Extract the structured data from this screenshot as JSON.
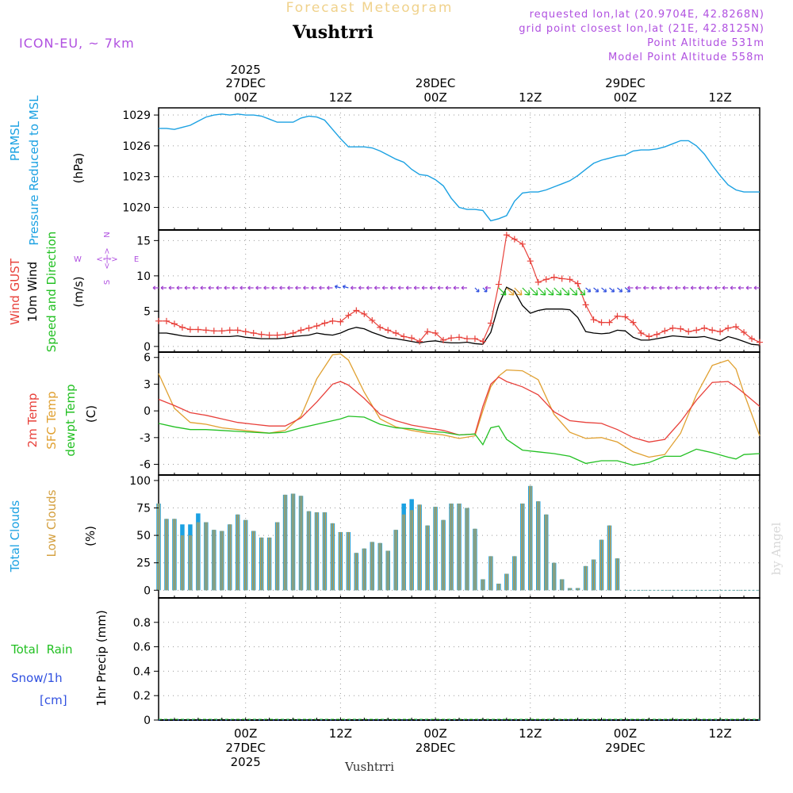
{
  "header": {
    "forecast_label": "Forecast Meteogram",
    "title": "Vushtrri",
    "model": "ICON-EU, ~ 7km",
    "requested": "requested lon,lat (20.9704E, 42.8268N)",
    "grid_point": "grid point closest lon,lat (21E, 42.8125N)",
    "point_altitude": "Point Altitude 531m",
    "model_altitude": "Model Point Altitude 558m",
    "footer_name": "Vushtrri",
    "watermark": "by Angel",
    "compass_n": "N",
    "compass_s": "S",
    "compass_w": "W",
    "compass_e": "E",
    "compass_arrows": "<-|->",
    "compass_vert": "<-|->"
  },
  "time_axis": {
    "year": "2025",
    "top_labels": [
      {
        "hour": 24,
        "time": "00Z",
        "date": "27DEC",
        "year": "2025"
      },
      {
        "hour": 36,
        "time": "12Z",
        "date": "",
        "year": ""
      },
      {
        "hour": 48,
        "time": "00Z",
        "date": "28DEC",
        "year": ""
      },
      {
        "hour": 60,
        "time": "12Z",
        "date": "",
        "year": ""
      },
      {
        "hour": 72,
        "time": "00Z",
        "date": "29DEC",
        "year": ""
      },
      {
        "hour": 84,
        "time": "12Z",
        "date": "",
        "year": ""
      }
    ],
    "bottom_labels": [
      {
        "hour": 24,
        "time": "00Z",
        "date": "27DEC",
        "year": "2025"
      },
      {
        "hour": 36,
        "time": "12Z",
        "date": "",
        "year": ""
      },
      {
        "hour": 48,
        "time": "00Z",
        "date": "28DEC",
        "year": ""
      },
      {
        "hour": 60,
        "time": "12Z",
        "date": "",
        "year": ""
      },
      {
        "hour": 72,
        "time": "00Z",
        "date": "29DEC",
        "year": ""
      },
      {
        "hour": 84,
        "time": "12Z",
        "date": "",
        "year": ""
      }
    ],
    "hour_start": 13,
    "hour_end": 89
  },
  "panel_labels": {
    "pressure": {
      "name1": "PRMSL",
      "name2": "Pressure Reduced to MSL",
      "unit": "(hPa)"
    },
    "wind": {
      "gust": "Wind GUST",
      "wind10": "10m Wind",
      "dir": "Speed and Direction",
      "unit": "(m/s)"
    },
    "temp": {
      "t2m": "2m Temp",
      "sfc": "SFC Temp",
      "dewpt": "dewpt Temp",
      "unit": "(C)"
    },
    "clouds": {
      "total": "Total Clouds",
      "low": "Low Clouds",
      "unit": "(%)"
    },
    "precip": {
      "rain": "Total  Rain",
      "snow": "Snow/1h",
      "snow_unit": "[cm]",
      "ylabel": "1hr Precip (mm)"
    }
  },
  "colors": {
    "pressure": "#1ba1e2",
    "gust": "#e8403a",
    "wind": "#000000",
    "t2m": "#e8403a",
    "sfc": "#e0a030",
    "dewpt": "#22c022",
    "total_cloud": "#1ba1e2",
    "low_cloud": "#d4a040",
    "purple": "#a040d0",
    "rain": "#22c022",
    "snow": "#3050e0"
  },
  "chart_data": [
    {
      "type": "line",
      "title": "PRMSL Pressure Reduced to MSL",
      "ylabel": "(hPa)",
      "ylim": [
        1017.8,
        1029.7
      ],
      "yticks": [
        1020,
        1023,
        1026,
        1029
      ],
      "x": [
        13,
        14,
        15,
        16,
        17,
        18,
        19,
        20,
        21,
        22,
        23,
        24,
        25,
        26,
        27,
        28,
        29,
        30,
        31,
        32,
        33,
        34,
        35,
        36,
        37,
        38,
        39,
        40,
        41,
        42,
        43,
        44,
        45,
        46,
        47,
        48,
        49,
        50,
        51,
        52,
        53,
        54,
        55,
        56,
        57,
        58,
        59,
        60,
        61,
        62,
        63,
        64,
        65,
        66,
        67,
        68,
        69,
        70,
        71,
        72,
        73,
        74,
        75,
        76,
        77,
        78,
        79,
        80,
        81,
        82,
        83,
        84,
        85,
        86,
        87,
        88,
        89
      ],
      "series": [
        {
          "name": "PRMSL",
          "values": [
            1027.7,
            1027.7,
            1027.6,
            1027.8,
            1028.0,
            1028.4,
            1028.8,
            1029.0,
            1029.1,
            1029.0,
            1029.1,
            1029.0,
            1029.0,
            1028.9,
            1028.6,
            1028.3,
            1028.3,
            1028.3,
            1028.7,
            1028.9,
            1028.8,
            1028.5,
            1027.6,
            1026.7,
            1025.9,
            1025.9,
            1025.9,
            1025.8,
            1025.5,
            1025.1,
            1024.7,
            1024.4,
            1023.7,
            1023.2,
            1023.1,
            1022.7,
            1022.1,
            1020.9,
            1020.0,
            1019.8,
            1019.8,
            1019.7,
            1018.7,
            1018.9,
            1019.2,
            1020.6,
            1021.4,
            1021.5,
            1021.5,
            1021.7,
            1022.0,
            1022.3,
            1022.6,
            1023.1,
            1023.7,
            1024.3,
            1024.6,
            1024.8,
            1025.0,
            1025.1,
            1025.5,
            1025.6,
            1025.6,
            1025.7,
            1025.9,
            1026.2,
            1026.5,
            1026.5,
            1026.0,
            1025.2,
            1024.1,
            1023.1,
            1022.2,
            1021.7,
            1021.5,
            1021.5,
            1021.5
          ]
        }
      ]
    },
    {
      "type": "line",
      "title": "Wind GUST / 10m Wind",
      "ylabel": "(m/s)",
      "ylim": [
        -0.8,
        16.5
      ],
      "yticks": [
        0,
        5,
        10,
        15
      ],
      "x": [
        13,
        14,
        15,
        16,
        17,
        18,
        19,
        20,
        21,
        22,
        23,
        24,
        25,
        26,
        27,
        28,
        29,
        30,
        31,
        32,
        33,
        34,
        35,
        36,
        37,
        38,
        39,
        40,
        41,
        42,
        43,
        44,
        45,
        46,
        47,
        48,
        49,
        50,
        51,
        52,
        53,
        54,
        55,
        56,
        57,
        58,
        59,
        60,
        61,
        62,
        63,
        64,
        65,
        66,
        67,
        68,
        69,
        70,
        71,
        72,
        73,
        74,
        75,
        76,
        77,
        78,
        79,
        80,
        81,
        82,
        83,
        84,
        85,
        86,
        87,
        88,
        89
      ],
      "series": [
        {
          "name": "Wind GUST",
          "values": [
            3.6,
            3.6,
            3.2,
            2.7,
            2.4,
            2.4,
            2.3,
            2.2,
            2.2,
            2.3,
            2.3,
            2.1,
            1.9,
            1.7,
            1.6,
            1.6,
            1.7,
            1.9,
            2.3,
            2.6,
            2.9,
            3.3,
            3.6,
            3.5,
            4.4,
            5.1,
            4.6,
            3.7,
            2.7,
            2.3,
            1.9,
            1.4,
            1.2,
            0.7,
            2.1,
            1.9,
            0.9,
            1.2,
            1.3,
            1.1,
            1.1,
            0.7,
            3.3,
            8.8,
            15.8,
            15.2,
            14.5,
            12.1,
            9.1,
            9.5,
            9.8,
            9.6,
            9.5,
            8.9,
            5.9,
            3.8,
            3.4,
            3.4,
            4.3,
            4.2,
            3.4,
            1.9,
            1.4,
            1.7,
            2.2,
            2.6,
            2.5,
            2.1,
            2.3,
            2.6,
            2.3,
            2.1,
            2.6,
            2.8,
            2.0,
            1.1,
            0.6
          ]
        },
        {
          "name": "10m Wind",
          "values": [
            1.9,
            1.9,
            1.7,
            1.5,
            1.4,
            1.4,
            1.4,
            1.4,
            1.4,
            1.4,
            1.5,
            1.3,
            1.2,
            1.1,
            1.1,
            1.1,
            1.2,
            1.4,
            1.5,
            1.6,
            1.9,
            1.7,
            1.6,
            1.9,
            2.4,
            2.7,
            2.5,
            2.0,
            1.6,
            1.2,
            1.1,
            0.9,
            0.7,
            0.5,
            0.7,
            0.8,
            0.6,
            0.5,
            0.5,
            0.6,
            0.4,
            0.3,
            2.0,
            5.9,
            8.4,
            7.8,
            5.8,
            4.7,
            5.1,
            5.3,
            5.3,
            5.3,
            5.2,
            4.1,
            2.1,
            1.9,
            1.8,
            1.9,
            2.3,
            2.2,
            1.3,
            0.9,
            0.9,
            1.1,
            1.3,
            1.5,
            1.4,
            1.3,
            1.3,
            1.4,
            1.1,
            0.8,
            1.4,
            1.1,
            0.7,
            0.3,
            0.2
          ]
        }
      ]
    },
    {
      "type": "line",
      "title": "2m Temp / SFC Temp / dewpt Temp",
      "ylabel": "(C)",
      "ylim": [
        -7.2,
        6.6
      ],
      "yticks": [
        -6,
        -3,
        0,
        3,
        6
      ],
      "x": [
        13,
        15,
        17,
        19,
        21,
        23,
        25,
        27,
        29,
        31,
        33,
        35,
        36,
        37,
        39,
        41,
        43,
        45,
        47,
        49,
        51,
        53,
        54,
        55,
        56,
        57,
        59,
        61,
        63,
        65,
        67,
        69,
        71,
        73,
        75,
        77,
        79,
        81,
        83,
        85,
        86,
        87,
        89
      ],
      "series": [
        {
          "name": "2m Temp",
          "values": [
            1.3,
            0.6,
            -0.2,
            -0.5,
            -0.9,
            -1.3,
            -1.5,
            -1.7,
            -1.7,
            -0.8,
            1.0,
            3.0,
            3.3,
            2.9,
            1.4,
            -0.4,
            -1.1,
            -1.6,
            -1.9,
            -2.2,
            -2.7,
            -2.6,
            0.5,
            3.0,
            3.8,
            3.3,
            2.7,
            1.8,
            -0.1,
            -1.1,
            -1.3,
            -1.4,
            -2.1,
            -3.0,
            -3.5,
            -3.2,
            -1.2,
            1.2,
            3.2,
            3.3,
            2.7,
            2.0,
            0.5
          ]
        },
        {
          "name": "SFC Temp",
          "values": [
            4.2,
            0.3,
            -1.3,
            -1.5,
            -1.9,
            -2.1,
            -2.3,
            -2.5,
            -2.2,
            -0.6,
            3.6,
            6.3,
            6.4,
            5.7,
            2.1,
            -0.9,
            -1.8,
            -2.2,
            -2.5,
            -2.7,
            -3.1,
            -2.8,
            0.0,
            2.7,
            3.9,
            4.6,
            4.5,
            3.5,
            -0.4,
            -2.4,
            -3.1,
            -3.0,
            -3.5,
            -4.6,
            -5.2,
            -4.9,
            -2.5,
            1.8,
            5.1,
            5.7,
            4.7,
            2.0,
            -2.8
          ]
        },
        {
          "name": "dewpt Temp",
          "values": [
            -1.4,
            -1.8,
            -2.1,
            -2.1,
            -2.2,
            -2.3,
            -2.4,
            -2.5,
            -2.4,
            -1.9,
            -1.5,
            -1.1,
            -0.9,
            -0.6,
            -0.7,
            -1.5,
            -1.9,
            -2.0,
            -2.3,
            -2.4,
            -2.7,
            -2.6,
            -3.8,
            -1.9,
            -1.7,
            -3.2,
            -4.4,
            -4.6,
            -4.8,
            -5.1,
            -5.9,
            -5.6,
            -5.6,
            -6.1,
            -5.8,
            -5.1,
            -5.1,
            -4.3,
            -4.7,
            -5.2,
            -5.4,
            -4.9,
            -4.8
          ]
        }
      ]
    },
    {
      "type": "bar",
      "title": "Total Clouds / Low Clouds",
      "ylabel": "(%)",
      "ylim": [
        -7,
        105
      ],
      "yticks": [
        0,
        25,
        50,
        75,
        100
      ],
      "x": [
        13,
        14,
        15,
        16,
        17,
        18,
        19,
        20,
        21,
        22,
        23,
        24,
        25,
        26,
        27,
        28,
        29,
        30,
        31,
        32,
        33,
        34,
        35,
        36,
        37,
        38,
        39,
        40,
        41,
        42,
        43,
        44,
        45,
        46,
        47,
        48,
        49,
        50,
        51,
        52,
        53,
        54,
        55,
        56,
        57,
        58,
        59,
        60,
        61,
        62,
        63,
        64,
        65,
        66,
        67,
        68,
        69,
        70,
        71,
        72
      ],
      "series": [
        {
          "name": "Total Clouds",
          "values": [
            79,
            65,
            65,
            60,
            60,
            70,
            62,
            55,
            54,
            60,
            69,
            64,
            54,
            48,
            48,
            62,
            87,
            88,
            86,
            72,
            71,
            71,
            61,
            53,
            53,
            34,
            38,
            44,
            43,
            36,
            55,
            79,
            83,
            78,
            59,
            76,
            64,
            79,
            79,
            75,
            56,
            10,
            31,
            6,
            15,
            31,
            79,
            95,
            81,
            69,
            25,
            10,
            2,
            2,
            22,
            28,
            46,
            59,
            29,
            0
          ]
        },
        {
          "name": "Low Clouds",
          "values": [
            79,
            65,
            65,
            50,
            50,
            62,
            62,
            55,
            54,
            60,
            69,
            64,
            54,
            48,
            48,
            62,
            87,
            88,
            86,
            72,
            71,
            71,
            61,
            53,
            53,
            34,
            38,
            44,
            43,
            36,
            55,
            69,
            73,
            78,
            59,
            76,
            64,
            79,
            79,
            75,
            56,
            10,
            31,
            6,
            15,
            31,
            79,
            95,
            81,
            69,
            25,
            10,
            2,
            2,
            22,
            28,
            46,
            59,
            29,
            0
          ]
        }
      ]
    },
    {
      "type": "line",
      "title": "1hr Precip (mm)",
      "ylabel": "1hr Precip (mm)",
      "ylim": [
        0,
        1
      ],
      "yticks": [
        0,
        0.2,
        0.4,
        0.6,
        0.8
      ],
      "x": [
        13,
        89
      ],
      "series": [
        {
          "name": "Total Rain",
          "values": [
            0,
            0
          ]
        },
        {
          "name": "Snow/1h",
          "values": [
            0,
            0
          ]
        }
      ]
    }
  ]
}
